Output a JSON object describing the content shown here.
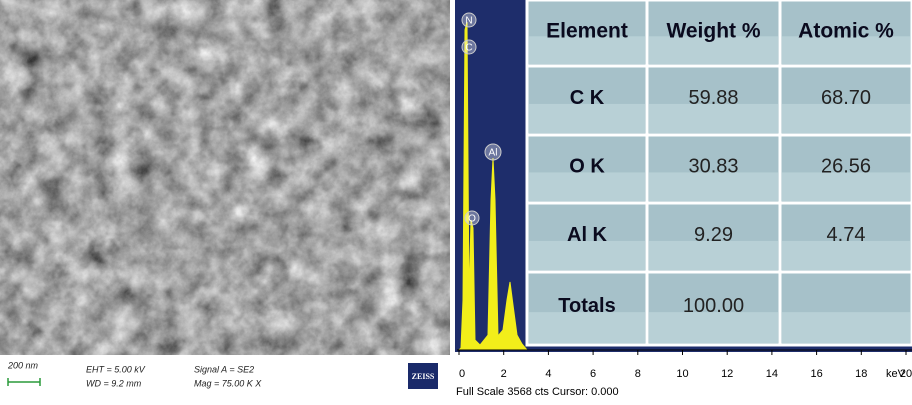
{
  "sem_info": {
    "scale_bar": "200 nm",
    "eht": "EHT = 5.00 kV",
    "wd": "WD = 9.2 mm",
    "signal": "Signal A = SE2",
    "mag": "Mag = 75.00 K X",
    "logo": "ZEISS"
  },
  "spectrum": {
    "peak_labels": [
      "N",
      "C",
      "Al",
      "O"
    ],
    "xticks": [
      0,
      2,
      4,
      6,
      8,
      10,
      12,
      14,
      16,
      18,
      20
    ],
    "unit": "keV",
    "footer": "Full Scale 3568 cts Cursor: 0.000"
  },
  "table": {
    "header": [
      "Element",
      "Weight %",
      "Atomic %"
    ],
    "rows": [
      [
        "C K",
        "59.88",
        "68.70"
      ],
      [
        "O K",
        "30.83",
        "26.56"
      ],
      [
        "Al K",
        "9.29",
        "4.74"
      ],
      [
        "Totals",
        "100.00"
      ]
    ]
  }
}
